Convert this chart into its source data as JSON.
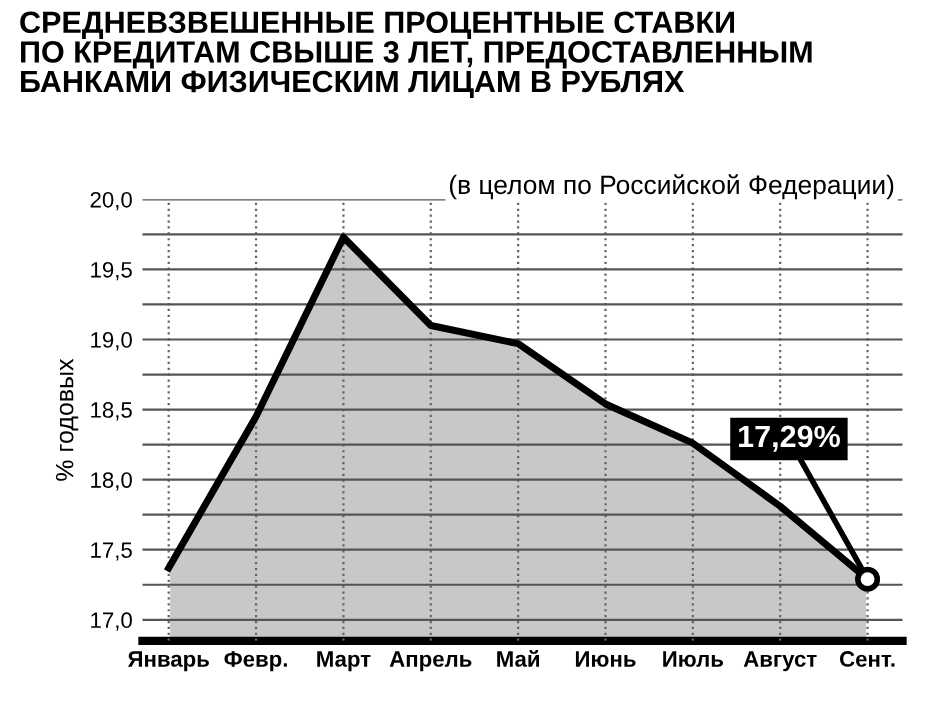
{
  "chart_data": {
    "type": "area",
    "title": "СРЕДНЕВЗВЕШЕННЫЕ ПРОЦЕНТНЫЕ СТАВКИ\nПО КРЕДИТАМ СВЫШЕ 3 ЛЕТ, ПРЕДОСТАВЛЕННЫМ\nБАНКАМИ ФИЗИЧЕСКИМ ЛИЦАМ В РУБЛЯХ",
    "subtitle": "(в целом по Российской Федерации)",
    "ylabel": "% годовых",
    "categories": [
      "Январь",
      "Февр.",
      "Март",
      "Апрель",
      "Май",
      "Июнь",
      "Июль",
      "Август",
      "Сент."
    ],
    "series": [
      {
        "color": "#c8c8c8",
        "values": [
          17.37,
          18.45,
          19.73,
          19.1,
          18.97,
          18.54,
          18.26,
          17.81,
          17.29
        ]
      }
    ],
    "ylim": [
      16.85,
      20.0
    ],
    "yticks": [
      {
        "value": 17,
        "label": "17,0"
      },
      {
        "value": 17.25,
        "label": null
      },
      {
        "value": 17.5,
        "label": "17,5"
      },
      {
        "value": 17.75,
        "label": null
      },
      {
        "value": 18,
        "label": "18,0"
      },
      {
        "value": 18.25,
        "label": null
      },
      {
        "value": 18.5,
        "label": "18,5"
      },
      {
        "value": 18.75,
        "label": null
      },
      {
        "value": 19,
        "label": "19,0"
      },
      {
        "value": 19.25,
        "label": null
      },
      {
        "value": 19.5,
        "label": "19,5"
      },
      {
        "value": 19.75,
        "label": null
      },
      {
        "value": 20,
        "label": "20,0"
      }
    ],
    "grid": true,
    "marker": "none",
    "line_style": "solid",
    "annotations": [
      {
        "text": "17,29%",
        "x": "Сент.",
        "y": 17.29
      }
    ]
  }
}
